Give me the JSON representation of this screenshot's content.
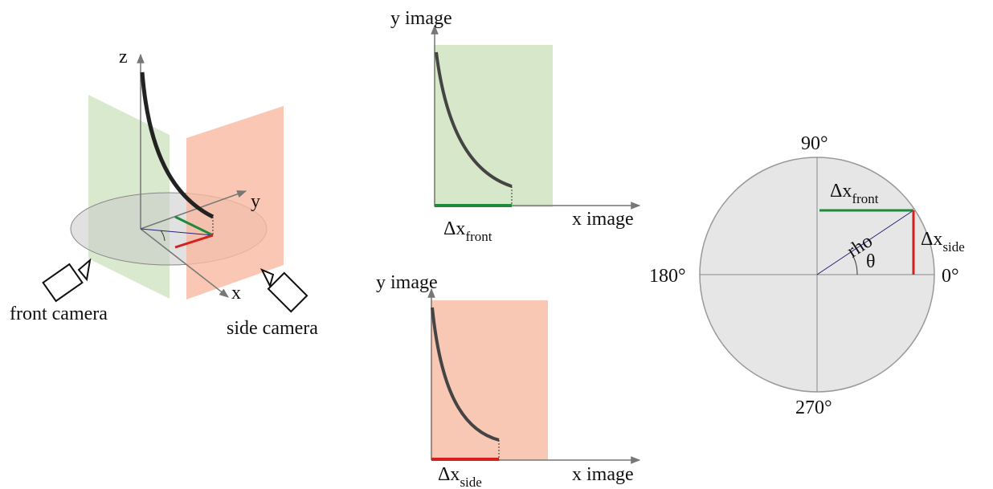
{
  "scene": {
    "axis_z": "z",
    "axis_y": "y",
    "axis_x": "x",
    "front_camera": "front camera",
    "side_camera": "side camera"
  },
  "front_view": {
    "y_label": "y image",
    "x_label": "x image",
    "delta": "Δx",
    "delta_sub": "front"
  },
  "side_view": {
    "y_label": "y image",
    "x_label": "x image",
    "delta": "Δx",
    "delta_sub": "side"
  },
  "polar": {
    "angle_90": "90°",
    "angle_180": "180°",
    "angle_270": "270°",
    "angle_0": "0°",
    "rho": "rho",
    "theta": "θ",
    "delta_front": "Δx",
    "delta_front_sub": "front",
    "delta_side": "Δx",
    "delta_side_sub": "side"
  }
}
